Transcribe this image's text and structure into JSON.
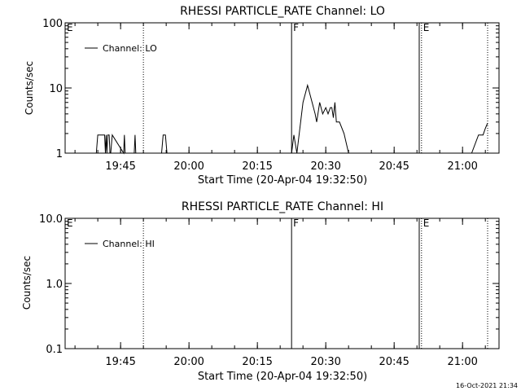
{
  "timestamp": "16-Oct-2021 21:34",
  "chart_data": [
    {
      "type": "line",
      "title": "RHESSI PARTICLE_RATE Channel: LO",
      "xlabel": "Start Time (20-Apr-04 19:32:50)",
      "ylabel": "Counts/sec",
      "y_scale": "log",
      "ylim": [
        1,
        100
      ],
      "yticks": [
        "1",
        "10",
        "100"
      ],
      "xlim": [
        "19:32:50",
        "21:08:00"
      ],
      "xticks": [
        "19:45",
        "20:00",
        "20:15",
        "20:30",
        "20:45",
        "21:00"
      ],
      "legend": "Channel: LO",
      "legend_position": "top-left",
      "events": [
        {
          "label": "E",
          "time": "19:32:50",
          "style": "dotted"
        },
        {
          "label": "",
          "time": "19:50:00",
          "style": "dotted"
        },
        {
          "label": "F",
          "time": "20:22:30",
          "style": "solid"
        },
        {
          "label": "",
          "time": "20:50:30",
          "style": "solid"
        },
        {
          "label": "E",
          "time": "20:51:00",
          "style": "dotted"
        },
        {
          "label": "",
          "time": "21:05:30",
          "style": "dotted"
        }
      ],
      "series": [
        {
          "name": "Channel: LO",
          "x": [
            "19:39:40",
            "19:40:00",
            "19:41:30",
            "19:41:40",
            "19:41:50",
            "19:42:00",
            "19:42:10",
            "19:42:30",
            "19:42:40",
            "19:42:50",
            "19:43:10",
            "19:45:40",
            "19:45:50",
            "19:46:00",
            "19:46:20",
            "19:48:00",
            "19:48:10",
            "19:48:20",
            "19:54:00",
            "19:54:20",
            "19:54:50",
            "19:55:10",
            "20:22:30",
            "20:23:00",
            "20:23:40",
            "20:25:00",
            "20:26:00",
            "20:27:00",
            "20:27:40",
            "20:28:00",
            "20:28:40",
            "20:29:20",
            "20:30:00",
            "20:30:30",
            "20:31:00",
            "20:31:20",
            "20:31:40",
            "20:32:00",
            "20:32:20",
            "20:33:00",
            "20:34:00",
            "20:35:00",
            "21:02:00",
            "21:03:30",
            "21:04:00",
            "21:04:30",
            "21:05:00",
            "21:05:30"
          ],
          "y": [
            1,
            1.9,
            1.9,
            1,
            1.9,
            1,
            1.9,
            1.9,
            1,
            1,
            1.9,
            1,
            1.9,
            1,
            1,
            1,
            1.9,
            1,
            1,
            1.9,
            1.9,
            1,
            1,
            1.9,
            1,
            6,
            11,
            6,
            4,
            3,
            6,
            4,
            5,
            4,
            5,
            5,
            3.5,
            6,
            3,
            3,
            2,
            1,
            1,
            1.9,
            1.9,
            1.9,
            2.4,
            2.9
          ]
        }
      ]
    },
    {
      "type": "line",
      "title": "RHESSI PARTICLE_RATE Channel: HI",
      "xlabel": "Start Time (20-Apr-04 19:32:50)",
      "ylabel": "Counts/sec",
      "y_scale": "log",
      "ylim": [
        0.1,
        10
      ],
      "yticks": [
        "0.1",
        "1.0",
        "10.0"
      ],
      "xlim": [
        "19:32:50",
        "21:08:00"
      ],
      "xticks": [
        "19:45",
        "20:00",
        "20:15",
        "20:30",
        "20:45",
        "21:00"
      ],
      "legend": "Channel: HI",
      "legend_position": "top-left",
      "events": [
        {
          "label": "E",
          "time": "19:32:50",
          "style": "dotted"
        },
        {
          "label": "",
          "time": "19:50:00",
          "style": "dotted"
        },
        {
          "label": "F",
          "time": "20:22:30",
          "style": "solid"
        },
        {
          "label": "",
          "time": "20:50:30",
          "style": "solid"
        },
        {
          "label": "E",
          "time": "20:51:00",
          "style": "dotted"
        },
        {
          "label": "",
          "time": "21:05:30",
          "style": "dotted"
        }
      ],
      "series": [
        {
          "name": "Channel: HI",
          "x": [],
          "y": []
        }
      ]
    }
  ]
}
